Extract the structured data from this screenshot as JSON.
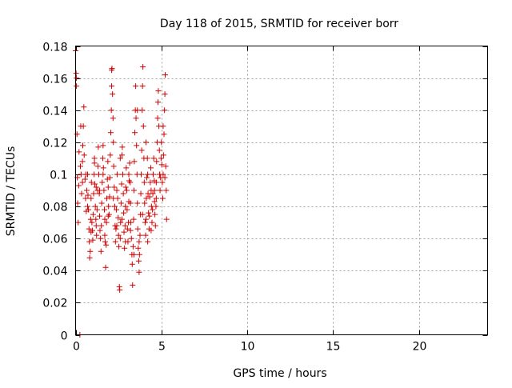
{
  "chart_data": {
    "type": "scatter",
    "title": "Day 118 of 2015, SRMTID for receiver borr",
    "xlabel": "GPS time / hours",
    "ylabel": "SRMTID / TECUs",
    "xlim": [
      0,
      24
    ],
    "ylim": [
      0,
      0.18
    ],
    "xticks": [
      0,
      5,
      10,
      15,
      20
    ],
    "xtick_labels": [
      "0",
      "5",
      "10",
      "15",
      "20"
    ],
    "yticks": [
      0,
      0.02,
      0.04,
      0.06,
      0.08,
      0.1,
      0.12,
      0.14,
      0.16,
      0.18
    ],
    "ytick_labels": [
      "0",
      "0.02",
      "0.04",
      "0.06",
      "0.08",
      "0.1",
      "0.12",
      "0.14",
      "0.16",
      "0.18"
    ],
    "grid": true,
    "marker": "plus",
    "color": "#d40000",
    "series": [
      {
        "points": [
          [
            0.0,
            0.177
          ],
          [
            0.03,
            0.163
          ],
          [
            0.05,
            0.155
          ],
          [
            0.08,
            0.125
          ],
          [
            0.1,
            0.098
          ],
          [
            0.12,
            0.082
          ],
          [
            0.15,
            0.07
          ],
          [
            0.18,
            0.093
          ],
          [
            0.2,
            0.114
          ],
          [
            0.25,
            0.0
          ],
          [
            0.28,
            0.105
          ],
          [
            0.32,
            0.1
          ],
          [
            0.35,
            0.088
          ],
          [
            0.4,
            0.095
          ],
          [
            0.42,
            0.118
          ],
          [
            0.45,
            0.13
          ],
          [
            0.48,
            0.142
          ],
          [
            0.5,
            0.112
          ],
          [
            0.55,
            0.097
          ],
          [
            0.58,
            0.085
          ],
          [
            0.62,
            0.077
          ],
          [
            0.65,
            0.09
          ],
          [
            0.7,
            0.1
          ],
          [
            0.72,
            0.087
          ],
          [
            0.75,
            0.078
          ],
          [
            0.78,
            0.066
          ],
          [
            0.8,
            0.058
          ],
          [
            0.82,
            0.048
          ],
          [
            0.85,
            0.052
          ],
          [
            0.88,
            0.072
          ],
          [
            0.9,
            0.085
          ],
          [
            0.92,
            0.095
          ],
          [
            0.95,
            0.07
          ],
          [
            0.98,
            0.065
          ],
          [
            1.0,
            0.059
          ],
          [
            1.02,
            0.075
          ],
          [
            1.05,
            0.088
          ],
          [
            1.08,
            0.1
          ],
          [
            1.1,
            0.107
          ],
          [
            1.12,
            0.094
          ],
          [
            1.15,
            0.08
          ],
          [
            1.18,
            0.072
          ],
          [
            1.2,
            0.068
          ],
          [
            1.22,
            0.062
          ],
          [
            1.25,
            0.078
          ],
          [
            1.28,
            0.09
          ],
          [
            1.3,
            0.105
          ],
          [
            1.32,
            0.117
          ],
          [
            1.35,
            0.1
          ],
          [
            1.38,
            0.088
          ],
          [
            1.4,
            0.074
          ],
          [
            1.42,
            0.065
          ],
          [
            1.45,
            0.06
          ],
          [
            1.48,
            0.052
          ],
          [
            1.5,
            0.068
          ],
          [
            1.52,
            0.082
          ],
          [
            1.55,
            0.095
          ],
          [
            1.58,
            0.11
          ],
          [
            1.6,
            0.118
          ],
          [
            1.62,
            0.104
          ],
          [
            1.65,
            0.09
          ],
          [
            1.68,
            0.078
          ],
          [
            1.7,
            0.072
          ],
          [
            1.72,
            0.058
          ],
          [
            1.75,
            0.042
          ],
          [
            1.78,
            0.056
          ],
          [
            1.8,
            0.07
          ],
          [
            1.82,
            0.085
          ],
          [
            1.85,
            0.097
          ],
          [
            1.88,
            0.108
          ],
          [
            1.9,
            0.092
          ],
          [
            1.92,
            0.08
          ],
          [
            1.95,
            0.075
          ],
          [
            1.98,
            0.086
          ],
          [
            2.0,
            0.098
          ],
          [
            2.02,
            0.112
          ],
          [
            2.05,
            0.126
          ],
          [
            2.08,
            0.14
          ],
          [
            2.1,
            0.155
          ],
          [
            2.12,
            0.166
          ],
          [
            2.15,
            0.15
          ],
          [
            2.18,
            0.135
          ],
          [
            2.2,
            0.12
          ],
          [
            2.22,
            0.105
          ],
          [
            2.25,
            0.092
          ],
          [
            2.28,
            0.08
          ],
          [
            2.3,
            0.068
          ],
          [
            2.32,
            0.058
          ],
          [
            2.35,
            0.066
          ],
          [
            2.38,
            0.078
          ],
          [
            2.4,
            0.09
          ],
          [
            2.42,
            0.1
          ],
          [
            2.45,
            0.085
          ],
          [
            2.48,
            0.073
          ],
          [
            2.5,
            0.062
          ],
          [
            2.52,
            0.055
          ],
          [
            2.55,
            0.03
          ],
          [
            2.57,
            0.028
          ],
          [
            2.6,
            0.06
          ],
          [
            2.62,
            0.07
          ],
          [
            2.65,
            0.082
          ],
          [
            2.68,
            0.094
          ],
          [
            2.7,
            0.112
          ],
          [
            2.72,
            0.117
          ],
          [
            2.75,
            0.1
          ],
          [
            2.78,
            0.088
          ],
          [
            2.8,
            0.076
          ],
          [
            2.82,
            0.064
          ],
          [
            2.85,
            0.054
          ],
          [
            2.88,
            0.068
          ],
          [
            2.9,
            0.08
          ],
          [
            2.92,
            0.092
          ],
          [
            2.95,
            0.104
          ],
          [
            2.98,
            0.09
          ],
          [
            3.0,
            0.078
          ],
          [
            3.02,
            0.066
          ],
          [
            3.05,
            0.058
          ],
          [
            3.08,
            0.07
          ],
          [
            3.1,
            0.083
          ],
          [
            3.12,
            0.096
          ],
          [
            3.15,
            0.107
          ],
          [
            3.18,
            0.095
          ],
          [
            3.2,
            0.082
          ],
          [
            3.22,
            0.07
          ],
          [
            3.25,
            0.06
          ],
          [
            3.28,
            0.05
          ],
          [
            3.3,
            0.044
          ],
          [
            3.32,
            0.031
          ],
          [
            3.35,
            0.055
          ],
          [
            3.38,
            0.072
          ],
          [
            3.4,
            0.09
          ],
          [
            3.42,
            0.108
          ],
          [
            3.45,
            0.126
          ],
          [
            3.48,
            0.14
          ],
          [
            3.5,
            0.155
          ],
          [
            3.52,
            0.135
          ],
          [
            3.55,
            0.118
          ],
          [
            3.58,
            0.1
          ],
          [
            3.6,
            0.082
          ],
          [
            3.62,
            0.066
          ],
          [
            3.65,
            0.054
          ],
          [
            3.68,
            0.046
          ],
          [
            3.7,
            0.039
          ],
          [
            3.72,
            0.05
          ],
          [
            3.75,
            0.062
          ],
          [
            3.78,
            0.075
          ],
          [
            3.8,
            0.088
          ],
          [
            3.82,
            0.1
          ],
          [
            3.85,
            0.115
          ],
          [
            3.88,
            0.14
          ],
          [
            3.9,
            0.155
          ],
          [
            3.92,
            0.167
          ],
          [
            3.95,
            0.13
          ],
          [
            3.98,
            0.11
          ],
          [
            4.0,
            0.095
          ],
          [
            4.02,
            0.082
          ],
          [
            4.05,
            0.07
          ],
          [
            4.08,
            0.062
          ],
          [
            4.1,
            0.072
          ],
          [
            4.12,
            0.085
          ],
          [
            4.15,
            0.098
          ],
          [
            4.18,
            0.11
          ],
          [
            4.2,
            0.1
          ],
          [
            4.22,
            0.088
          ],
          [
            4.25,
            0.076
          ],
          [
            4.28,
            0.066
          ],
          [
            4.3,
            0.074
          ],
          [
            4.32,
            0.086
          ],
          [
            4.35,
            0.095
          ],
          [
            4.38,
            0.104
          ],
          [
            4.4,
            0.09
          ],
          [
            4.42,
            0.08
          ],
          [
            4.45,
            0.07
          ],
          [
            4.48,
            0.078
          ],
          [
            4.5,
            0.088
          ],
          [
            4.52,
            0.1
          ],
          [
            4.55,
            0.11
          ],
          [
            4.58,
            0.096
          ],
          [
            4.6,
            0.083
          ],
          [
            4.62,
            0.075
          ],
          [
            4.65,
            0.068
          ],
          [
            4.68,
            0.08
          ],
          [
            4.7,
            0.095
          ],
          [
            4.72,
            0.108
          ],
          [
            4.75,
            0.12
          ],
          [
            4.78,
            0.135
          ],
          [
            4.8,
            0.145
          ],
          [
            4.82,
            0.152
          ],
          [
            4.85,
            0.13
          ],
          [
            4.88,
            0.115
          ],
          [
            4.9,
            0.1
          ],
          [
            4.92,
            0.09
          ],
          [
            4.95,
            0.098
          ],
          [
            4.98,
            0.11
          ],
          [
            5.0,
            0.12
          ],
          [
            5.02,
            0.106
          ],
          [
            5.05,
            0.095
          ],
          [
            5.08,
            0.085
          ],
          [
            5.1,
            0.1
          ],
          [
            5.12,
            0.112
          ],
          [
            5.15,
            0.125
          ],
          [
            5.18,
            0.14
          ],
          [
            5.2,
            0.15
          ],
          [
            5.22,
            0.162
          ],
          [
            5.25,
            0.105
          ],
          [
            5.28,
            0.09
          ],
          [
            5.3,
            0.072
          ],
          [
            0.05,
            0.16
          ],
          [
            0.3,
            0.13
          ],
          [
            0.6,
            0.1
          ],
          [
            1.1,
            0.11
          ],
          [
            1.6,
            0.1
          ],
          [
            2.1,
            0.165
          ],
          [
            2.6,
            0.11
          ],
          [
            3.1,
            0.1
          ],
          [
            3.6,
            0.14
          ],
          [
            4.1,
            0.12
          ],
          [
            4.6,
            0.09
          ],
          [
            5.1,
            0.13
          ],
          [
            0.4,
            0.108
          ],
          [
            0.9,
            0.064
          ],
          [
            1.4,
            0.09
          ],
          [
            1.9,
            0.074
          ],
          [
            2.4,
            0.068
          ],
          [
            2.9,
            0.058
          ],
          [
            3.4,
            0.05
          ],
          [
            3.9,
            0.075
          ],
          [
            4.4,
            0.065
          ],
          [
            4.9,
            0.1
          ],
          [
            0.7,
            0.08
          ],
          [
            1.2,
            0.092
          ],
          [
            1.7,
            0.062
          ],
          [
            2.2,
            0.085
          ],
          [
            2.7,
            0.072
          ],
          [
            3.2,
            0.065
          ],
          [
            3.7,
            0.058
          ],
          [
            4.2,
            0.058
          ],
          [
            4.7,
            0.085
          ],
          [
            5.2,
            0.098
          ]
        ]
      }
    ]
  }
}
